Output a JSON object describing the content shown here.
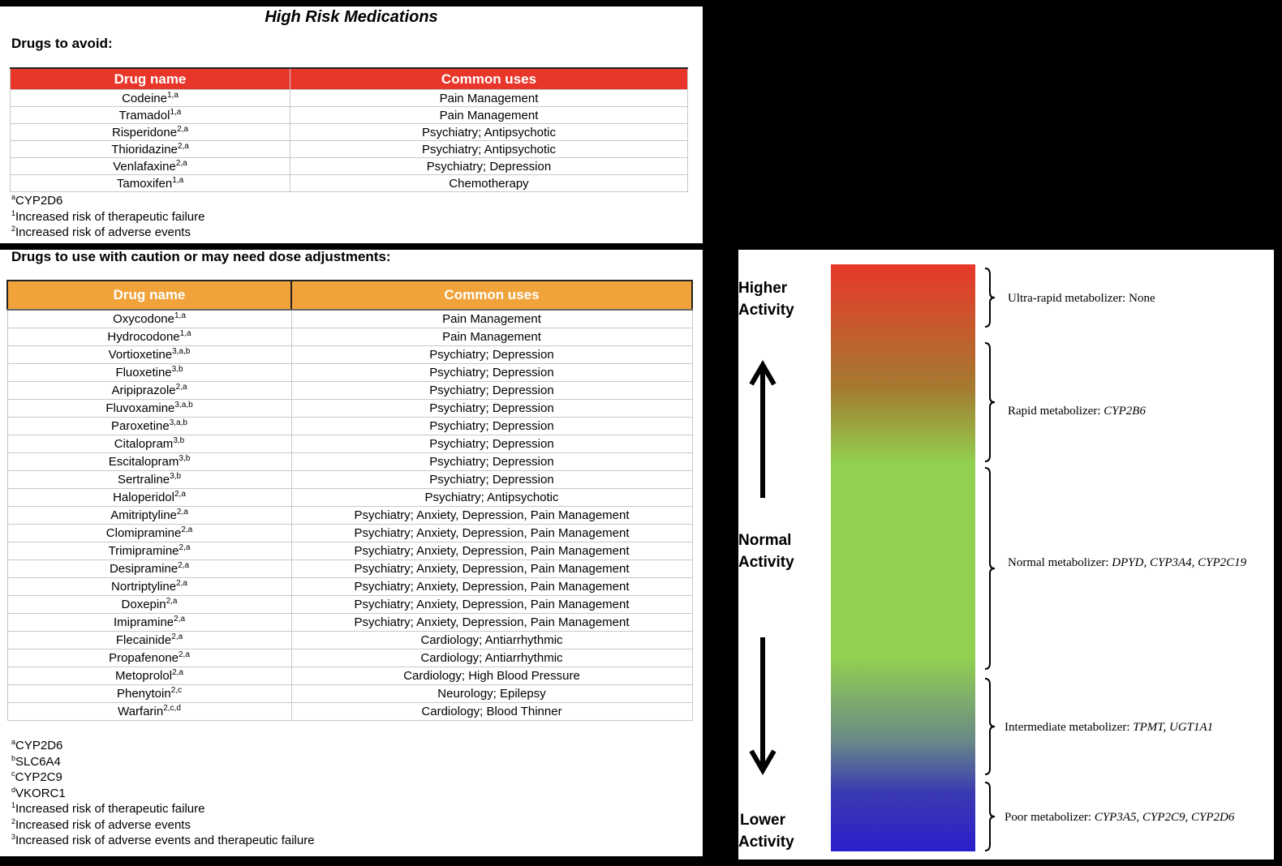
{
  "title": "High Risk Medications",
  "avoid": {
    "heading": "Drugs to avoid:",
    "columns": [
      "Drug name",
      "Common uses"
    ],
    "rows": [
      {
        "name": "Codeine",
        "sup": "1,a",
        "use": "Pain Management"
      },
      {
        "name": "Tramadol",
        "sup": "1,a",
        "use": "Pain Management"
      },
      {
        "name": "Risperidone",
        "sup": "2,a",
        "use": "Psychiatry; Antipsychotic"
      },
      {
        "name": "Thioridazine",
        "sup": "2,a",
        "use": "Psychiatry; Antipsychotic"
      },
      {
        "name": "Venlafaxine",
        "sup": "2,a",
        "use": "Psychiatry; Depression"
      },
      {
        "name": "Tamoxifen",
        "sup": "1,a",
        "use": "Chemotherapy"
      }
    ],
    "notes": [
      {
        "mark": "a",
        "text": "CYP2D6"
      },
      {
        "mark": "1",
        "text": "Increased risk of therapeutic failure"
      },
      {
        "mark": "2",
        "text": "Increased risk of adverse events"
      }
    ]
  },
  "caution": {
    "heading": "Drugs to use with caution or may need dose adjustments:",
    "columns": [
      "Drug name",
      "Common uses"
    ],
    "rows": [
      {
        "name": "Oxycodone",
        "sup": "1,a",
        "use": "Pain Management"
      },
      {
        "name": "Hydrocodone",
        "sup": "1,a",
        "use": "Pain Management"
      },
      {
        "name": "Vortioxetine",
        "sup": "3,a,b",
        "use": "Psychiatry; Depression"
      },
      {
        "name": "Fluoxetine",
        "sup": "3,b",
        "use": "Psychiatry; Depression"
      },
      {
        "name": "Aripiprazole",
        "sup": "2,a",
        "use": "Psychiatry; Depression"
      },
      {
        "name": "Fluvoxamine",
        "sup": "3,a,b",
        "use": "Psychiatry; Depression"
      },
      {
        "name": "Paroxetine",
        "sup": "3,a,b",
        "use": "Psychiatry; Depression"
      },
      {
        "name": "Citalopram",
        "sup": "3,b",
        "use": "Psychiatry; Depression"
      },
      {
        "name": "Escitalopram",
        "sup": "3,b",
        "use": "Psychiatry; Depression"
      },
      {
        "name": "Sertraline",
        "sup": "3,b",
        "use": "Psychiatry; Depression"
      },
      {
        "name": "Haloperidol",
        "sup": "2,a",
        "use": "Psychiatry; Antipsychotic"
      },
      {
        "name": "Amitriptyline",
        "sup": "2,a",
        "use": "Psychiatry; Anxiety, Depression, Pain Management"
      },
      {
        "name": "Clomipramine",
        "sup": "2,a",
        "use": "Psychiatry; Anxiety, Depression, Pain Management"
      },
      {
        "name": "Trimipramine",
        "sup": "2,a",
        "use": "Psychiatry; Anxiety, Depression, Pain Management"
      },
      {
        "name": "Desipramine",
        "sup": "2,a",
        "use": "Psychiatry; Anxiety, Depression, Pain Management"
      },
      {
        "name": "Nortriptyline",
        "sup": "2,a",
        "use": "Psychiatry; Anxiety, Depression, Pain Management"
      },
      {
        "name": "Doxepin",
        "sup": "2,a",
        "use": "Psychiatry; Anxiety, Depression, Pain Management"
      },
      {
        "name": "Imipramine",
        "sup": "2,a",
        "use": "Psychiatry; Anxiety, Depression, Pain Management"
      },
      {
        "name": "Flecainide",
        "sup": "2,a",
        "use": "Cardiology; Antiarrhythmic"
      },
      {
        "name": "Propafenone",
        "sup": "2,a",
        "use": "Cardiology; Antiarrhythmic"
      },
      {
        "name": "Metoprolol",
        "sup": "2,a",
        "use": "Cardiology; High Blood Pressure"
      },
      {
        "name": "Phenytoin",
        "sup": "2,c",
        "use": "Neurology; Epilepsy"
      },
      {
        "name": "Warfarin",
        "sup": "2,c,d",
        "use": "Cardiology; Blood Thinner"
      }
    ],
    "notes": [
      {
        "mark": "a",
        "text": "CYP2D6"
      },
      {
        "mark": "b",
        "text": "SLC6A4"
      },
      {
        "mark": "c",
        "text": "CYP2C9"
      },
      {
        "mark": "d",
        "text": "VKORC1"
      },
      {
        "mark": "1",
        "text": "Increased risk of therapeutic failure"
      },
      {
        "mark": "2",
        "text": "Increased risk of adverse events"
      },
      {
        "mark": "3",
        "text": "Increased risk of adverse events and therapeutic failure"
      }
    ]
  },
  "activity_scale": {
    "higher_line1": "Higher",
    "higher_line2": "Activity",
    "normal_line1": "Normal",
    "normal_line2": "Activity",
    "lower_line1": "Lower",
    "lower_line2": "Activity",
    "gradient_colors": [
      "#e8372a",
      "#92d050",
      "#2a1fcc"
    ],
    "metabolizers": [
      {
        "label": "Ultra-rapid metabolizer: ",
        "genes": "None",
        "genes_italic": false
      },
      {
        "label": "Rapid metabolizer: ",
        "genes": "CYP2B6",
        "genes_italic": true
      },
      {
        "label": "Normal metabolizer: ",
        "genes": "DPYD, CYP3A4, CYP2C19",
        "genes_italic": true
      },
      {
        "label": "Intermediate metabolizer: ",
        "genes": "TPMT, UGT1A1",
        "genes_italic": true
      },
      {
        "label": "Poor metabolizer: ",
        "genes": "CYP3A5, CYP2C9, CYP2D6",
        "genes_italic": true
      }
    ]
  }
}
